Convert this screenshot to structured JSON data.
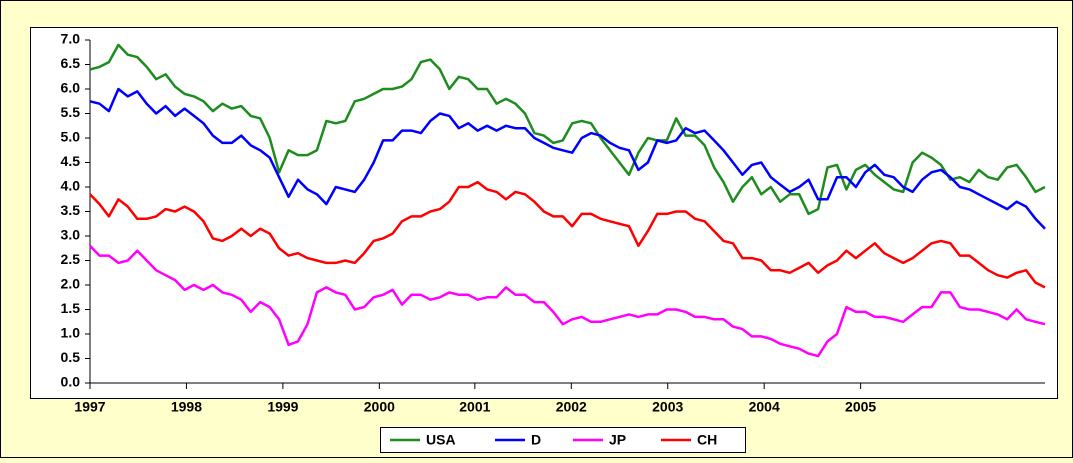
{
  "chart_data": {
    "type": "line",
    "xlim": [
      0,
      101
    ],
    "xticks": [
      {
        "value": 0,
        "label": "1997"
      },
      {
        "value": 10.2,
        "label": "1998"
      },
      {
        "value": 20.4,
        "label": "1999"
      },
      {
        "value": 30.6,
        "label": "2000"
      },
      {
        "value": 40.7,
        "label": "2001"
      },
      {
        "value": 50.9,
        "label": "2002"
      },
      {
        "value": 61.1,
        "label": "2003"
      },
      {
        "value": 71.3,
        "label": "2004"
      },
      {
        "value": 81.5,
        "label": "2005"
      }
    ],
    "ylim": [
      0,
      7
    ],
    "yticks": [
      {
        "value": 0,
        "label": "0.0"
      },
      {
        "value": 0.5,
        "label": "0.5"
      },
      {
        "value": 1,
        "label": "1.0"
      },
      {
        "value": 1.5,
        "label": "1.5"
      },
      {
        "value": 2,
        "label": "2.0"
      },
      {
        "value": 2.5,
        "label": "2.5"
      },
      {
        "value": 3,
        "label": "3.0"
      },
      {
        "value": 3.5,
        "label": "3.5"
      },
      {
        "value": 4,
        "label": "4.0"
      },
      {
        "value": 4.5,
        "label": "4.5"
      },
      {
        "value": 5,
        "label": "5.0"
      },
      {
        "value": 5.5,
        "label": "5.5"
      },
      {
        "value": 6,
        "label": "6.0"
      },
      {
        "value": 6.5,
        "label": "6.5"
      },
      {
        "value": 7,
        "label": "7.0"
      }
    ],
    "grid": false,
    "legend": "bottom",
    "series": [
      {
        "name": "USA",
        "color": "#1e8c1e",
        "values": [
          6.4,
          6.45,
          6.55,
          6.9,
          6.7,
          6.65,
          6.45,
          6.2,
          6.3,
          6.05,
          5.9,
          5.85,
          5.75,
          5.55,
          5.7,
          5.6,
          5.65,
          5.45,
          5.4,
          5.0,
          4.3,
          4.75,
          4.65,
          4.65,
          4.75,
          5.35,
          5.3,
          5.35,
          5.75,
          5.8,
          5.9,
          6.0,
          6.0,
          6.05,
          6.2,
          6.55,
          6.6,
          6.4,
          6.0,
          6.25,
          6.2,
          6.0,
          6.0,
          5.7,
          5.8,
          5.7,
          5.5,
          5.1,
          5.05,
          4.9,
          4.95,
          5.3,
          5.35,
          5.3,
          5.0,
          4.75,
          4.5,
          4.25,
          4.7,
          5.0,
          4.95,
          4.95,
          5.4,
          5.05,
          5.05,
          4.85,
          4.4,
          4.1,
          3.7,
          4.0,
          4.2,
          3.85,
          4.0,
          3.7,
          3.85,
          3.85,
          3.45,
          3.55,
          4.4,
          4.45,
          3.95,
          4.35,
          4.45,
          4.25,
          4.1,
          3.95,
          3.9,
          4.5,
          4.7,
          4.6,
          4.45,
          4.15,
          4.2,
          4.1,
          4.35,
          4.2,
          4.15,
          4.4,
          4.45,
          4.2,
          3.9,
          4.0
        ]
      },
      {
        "name": "D",
        "color": "#0000ff",
        "values": [
          5.75,
          5.7,
          5.55,
          6.0,
          5.85,
          5.95,
          5.7,
          5.5,
          5.65,
          5.45,
          5.6,
          5.45,
          5.3,
          5.05,
          4.9,
          4.9,
          5.05,
          4.85,
          4.75,
          4.6,
          4.2,
          3.8,
          4.15,
          3.95,
          3.85,
          3.65,
          4.0,
          3.95,
          3.9,
          4.15,
          4.5,
          4.95,
          4.95,
          5.15,
          5.15,
          5.1,
          5.35,
          5.5,
          5.45,
          5.2,
          5.3,
          5.15,
          5.25,
          5.15,
          5.25,
          5.2,
          5.2,
          5.0,
          4.9,
          4.8,
          4.75,
          4.7,
          5.0,
          5.1,
          5.05,
          4.9,
          4.8,
          4.75,
          4.35,
          4.5,
          4.95,
          4.9,
          4.95,
          5.2,
          5.1,
          5.15,
          4.95,
          4.75,
          4.5,
          4.25,
          4.45,
          4.5,
          4.2,
          4.05,
          3.9,
          4.0,
          4.15,
          3.75,
          3.75,
          4.2,
          4.2,
          4.0,
          4.3,
          4.45,
          4.25,
          4.2,
          4.0,
          3.9,
          4.15,
          4.3,
          4.35,
          4.2,
          4.0,
          3.95,
          3.85,
          3.75,
          3.65,
          3.55,
          3.7,
          3.6,
          3.35,
          3.15
        ]
      },
      {
        "name": "JP",
        "color": "#ff00ff",
        "values": [
          2.8,
          2.6,
          2.6,
          2.45,
          2.5,
          2.7,
          2.5,
          2.3,
          2.2,
          2.1,
          1.9,
          2.0,
          1.9,
          2.0,
          1.85,
          1.8,
          1.7,
          1.45,
          1.65,
          1.55,
          1.3,
          0.78,
          0.85,
          1.2,
          1.85,
          1.95,
          1.85,
          1.8,
          1.5,
          1.55,
          1.75,
          1.8,
          1.9,
          1.6,
          1.8,
          1.8,
          1.7,
          1.75,
          1.85,
          1.8,
          1.8,
          1.7,
          1.75,
          1.75,
          1.95,
          1.8,
          1.8,
          1.65,
          1.65,
          1.45,
          1.2,
          1.3,
          1.35,
          1.25,
          1.25,
          1.3,
          1.35,
          1.4,
          1.35,
          1.4,
          1.4,
          1.5,
          1.5,
          1.45,
          1.35,
          1.35,
          1.3,
          1.3,
          1.15,
          1.1,
          0.95,
          0.95,
          0.9,
          0.8,
          0.75,
          0.7,
          0.6,
          0.55,
          0.85,
          1.0,
          1.55,
          1.45,
          1.45,
          1.35,
          1.35,
          1.3,
          1.25,
          1.4,
          1.55,
          1.55,
          1.85,
          1.85,
          1.55,
          1.5,
          1.5,
          1.45,
          1.4,
          1.3,
          1.5,
          1.3,
          1.25,
          1.2
        ]
      },
      {
        "name": "CH",
        "color": "#ff0000",
        "values": [
          3.85,
          3.65,
          3.4,
          3.75,
          3.6,
          3.35,
          3.35,
          3.4,
          3.55,
          3.5,
          3.6,
          3.5,
          3.3,
          2.95,
          2.9,
          3.0,
          3.15,
          3.0,
          3.15,
          3.05,
          2.75,
          2.6,
          2.65,
          2.55,
          2.5,
          2.45,
          2.45,
          2.5,
          2.45,
          2.65,
          2.9,
          2.95,
          3.05,
          3.3,
          3.4,
          3.4,
          3.5,
          3.55,
          3.7,
          4.0,
          4.0,
          4.1,
          3.95,
          3.9,
          3.75,
          3.9,
          3.85,
          3.7,
          3.5,
          3.4,
          3.4,
          3.2,
          3.45,
          3.45,
          3.35,
          3.3,
          3.25,
          3.2,
          2.8,
          3.1,
          3.45,
          3.45,
          3.5,
          3.5,
          3.35,
          3.3,
          3.1,
          2.9,
          2.85,
          2.55,
          2.55,
          2.5,
          2.3,
          2.3,
          2.25,
          2.35,
          2.45,
          2.25,
          2.4,
          2.5,
          2.7,
          2.55,
          2.7,
          2.85,
          2.65,
          2.55,
          2.45,
          2.55,
          2.7,
          2.85,
          2.9,
          2.85,
          2.6,
          2.6,
          2.45,
          2.3,
          2.2,
          2.15,
          2.25,
          2.3,
          2.05,
          1.95
        ]
      }
    ]
  }
}
